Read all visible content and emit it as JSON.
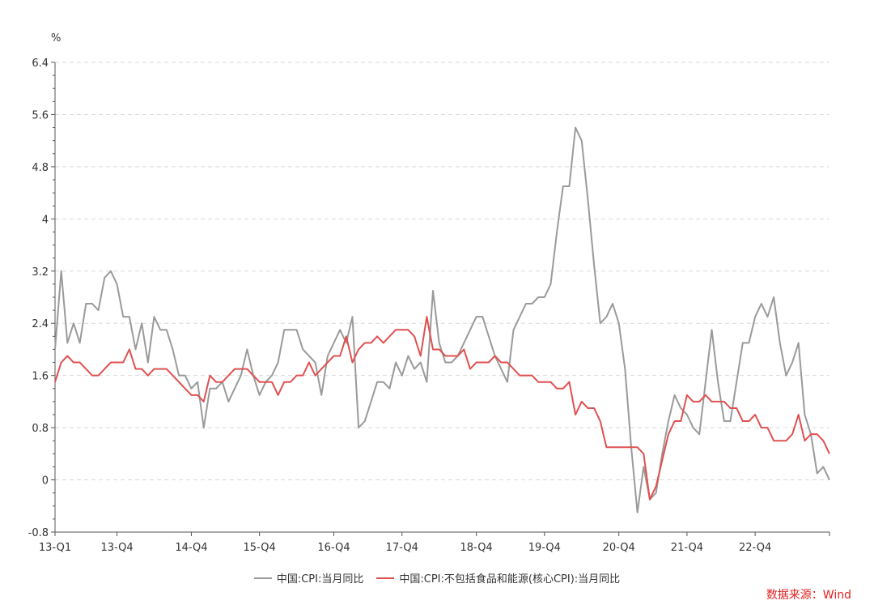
{
  "chart_data": {
    "type": "line",
    "ylabel": "%",
    "ylim": [
      -0.8,
      6.4
    ],
    "yticks": [
      "6.4",
      "5.6",
      "4.8",
      "4",
      "3.2",
      "2.4",
      "1.6",
      "0.8",
      "0",
      "-0.8"
    ],
    "ytick_values": [
      6.4,
      5.6,
      4.8,
      4.0,
      3.2,
      2.4,
      1.6,
      0.8,
      0,
      -0.8
    ],
    "x_start": "2013-01",
    "xticks": [
      {
        "label": "13-Q1",
        "index": 0
      },
      {
        "label": "13-Q4",
        "index": 10
      },
      {
        "label": "14-Q4",
        "index": 22
      },
      {
        "label": "15-Q4",
        "index": 33
      },
      {
        "label": "16-Q4",
        "index": 45
      },
      {
        "label": "17-Q4",
        "index": 56
      },
      {
        "label": "18-Q4",
        "index": 68
      },
      {
        "label": "19-Q4",
        "index": 79
      },
      {
        "label": "20-Q4",
        "index": 91
      },
      {
        "label": "21-Q4",
        "index": 102
      },
      {
        "label": "22-Q4",
        "index": 113
      }
    ],
    "grid": "horizontal-dashed",
    "legend_position": "bottom",
    "series": [
      {
        "name": "中国:CPI:当月同比",
        "color": "#9a9a9a",
        "values": [
          2.0,
          3.2,
          2.1,
          2.4,
          2.1,
          2.7,
          2.7,
          2.6,
          3.1,
          3.2,
          3.0,
          2.5,
          2.5,
          2.0,
          2.4,
          1.8,
          2.5,
          2.3,
          2.3,
          2.0,
          1.6,
          1.6,
          1.4,
          1.5,
          0.8,
          1.4,
          1.4,
          1.5,
          1.2,
          1.4,
          1.6,
          2.0,
          1.6,
          1.3,
          1.5,
          1.6,
          1.8,
          2.3,
          2.3,
          2.3,
          2.0,
          1.9,
          1.8,
          1.3,
          1.9,
          2.1,
          2.3,
          2.1,
          2.5,
          0.8,
          0.9,
          1.2,
          1.5,
          1.5,
          1.4,
          1.8,
          1.6,
          1.9,
          1.7,
          1.8,
          1.5,
          2.9,
          2.1,
          1.8,
          1.8,
          1.9,
          2.1,
          2.3,
          2.5,
          2.5,
          2.2,
          1.9,
          1.7,
          1.5,
          2.3,
          2.5,
          2.7,
          2.7,
          2.8,
          2.8,
          3.0,
          3.8,
          4.5,
          4.5,
          5.4,
          5.2,
          4.3,
          3.3,
          2.4,
          2.5,
          2.7,
          2.4,
          1.7,
          0.5,
          -0.5,
          0.2,
          -0.3,
          -0.2,
          0.4,
          0.9,
          1.3,
          1.1,
          1.0,
          0.8,
          0.7,
          1.5,
          2.3,
          1.5,
          0.9,
          0.9,
          1.5,
          2.1,
          2.1,
          2.5,
          2.7,
          2.5,
          2.8,
          2.1,
          1.6,
          1.8,
          2.1,
          1.0,
          0.7,
          0.1,
          0.2,
          0.0
        ]
      },
      {
        "name": "中国:CPI:不包括食品和能源(核心CPI):当月同比",
        "color": "#e05050",
        "values": [
          1.5,
          1.8,
          1.9,
          1.8,
          1.8,
          1.7,
          1.6,
          1.6,
          1.7,
          1.8,
          1.8,
          1.8,
          2.0,
          1.7,
          1.7,
          1.6,
          1.7,
          1.7,
          1.7,
          1.6,
          1.5,
          1.4,
          1.3,
          1.3,
          1.2,
          1.6,
          1.5,
          1.5,
          1.6,
          1.7,
          1.7,
          1.7,
          1.6,
          1.5,
          1.5,
          1.5,
          1.3,
          1.5,
          1.5,
          1.6,
          1.6,
          1.8,
          1.6,
          1.7,
          1.8,
          1.9,
          1.9,
          2.2,
          1.8,
          2.0,
          2.1,
          2.1,
          2.2,
          2.1,
          2.2,
          2.3,
          2.3,
          2.3,
          2.2,
          1.9,
          2.5,
          2.0,
          2.0,
          1.9,
          1.9,
          1.9,
          2.0,
          1.7,
          1.8,
          1.8,
          1.8,
          1.9,
          1.8,
          1.8,
          1.7,
          1.6,
          1.6,
          1.6,
          1.5,
          1.5,
          1.5,
          1.4,
          1.4,
          1.5,
          1.0,
          1.2,
          1.1,
          1.1,
          0.9,
          0.5,
          0.5,
          0.5,
          0.5,
          0.5,
          0.5,
          0.4,
          -0.3,
          -0.1,
          0.3,
          0.7,
          0.9,
          0.9,
          1.3,
          1.2,
          1.2,
          1.3,
          1.2,
          1.2,
          1.2,
          1.1,
          1.1,
          0.9,
          0.9,
          1.0,
          0.8,
          0.8,
          0.6,
          0.6,
          0.6,
          0.7,
          1.0,
          0.6,
          0.7,
          0.7,
          0.6,
          0.4
        ]
      }
    ]
  },
  "source": "数据来源：Wind"
}
